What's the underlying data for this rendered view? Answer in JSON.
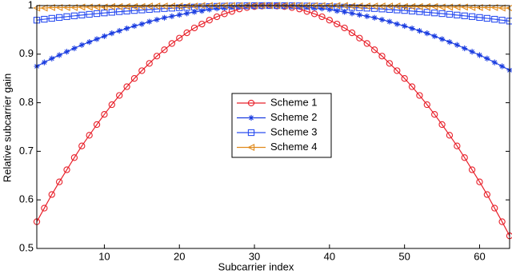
{
  "chart_data": {
    "type": "line",
    "x_label": "Subcarrier index",
    "y_label": "Relative subcarrier gain",
    "x": [
      1,
      2,
      3,
      4,
      5,
      6,
      7,
      8,
      9,
      10,
      11,
      12,
      13,
      14,
      15,
      16,
      17,
      18,
      19,
      20,
      21,
      22,
      23,
      24,
      25,
      26,
      27,
      28,
      29,
      30,
      31,
      32,
      33,
      34,
      35,
      36,
      37,
      38,
      39,
      40,
      41,
      42,
      43,
      44,
      45,
      46,
      47,
      48,
      49,
      50,
      51,
      52,
      53,
      54,
      55,
      56,
      57,
      58,
      59,
      60,
      61,
      62,
      63,
      64
    ],
    "xlim": [
      1,
      64
    ],
    "xticks": [
      10,
      20,
      30,
      40,
      50,
      60
    ],
    "ylim": [
      0.5,
      1
    ],
    "yticks": [
      0.5,
      0.6,
      0.7,
      0.8,
      0.9,
      1
    ],
    "legend_position": "center",
    "series": [
      {
        "name": "Scheme 1",
        "color": "#e8202a",
        "marker": "circle",
        "values": [
          0.555,
          0.583,
          0.611,
          0.637,
          0.662,
          0.687,
          0.711,
          0.733,
          0.755,
          0.776,
          0.796,
          0.815,
          0.833,
          0.85,
          0.866,
          0.881,
          0.896,
          0.909,
          0.922,
          0.933,
          0.944,
          0.954,
          0.962,
          0.97,
          0.977,
          0.983,
          0.988,
          0.993,
          0.996,
          0.998,
          0.999,
          1,
          0.999,
          0.998,
          0.996,
          0.993,
          0.988,
          0.983,
          0.977,
          0.97,
          0.962,
          0.954,
          0.944,
          0.933,
          0.922,
          0.909,
          0.896,
          0.881,
          0.866,
          0.85,
          0.833,
          0.815,
          0.796,
          0.776,
          0.755,
          0.733,
          0.711,
          0.687,
          0.662,
          0.637,
          0.611,
          0.583,
          0.555,
          0.526
        ]
      },
      {
        "name": "Scheme 2",
        "color": "#1a3ce0",
        "marker": "star",
        "values": [
          0.875,
          0.883,
          0.891,
          0.898,
          0.905,
          0.912,
          0.919,
          0.925,
          0.931,
          0.937,
          0.943,
          0.948,
          0.953,
          0.958,
          0.962,
          0.967,
          0.971,
          0.975,
          0.978,
          0.981,
          0.984,
          0.987,
          0.989,
          0.992,
          0.994,
          0.995,
          0.997,
          0.998,
          0.999,
          0.999,
          1,
          1,
          1,
          0.999,
          0.999,
          0.998,
          0.997,
          0.995,
          0.994,
          0.992,
          0.989,
          0.987,
          0.984,
          0.981,
          0.978,
          0.975,
          0.971,
          0.967,
          0.962,
          0.958,
          0.953,
          0.948,
          0.943,
          0.937,
          0.931,
          0.925,
          0.919,
          0.912,
          0.905,
          0.898,
          0.891,
          0.883,
          0.875,
          0.867
        ]
      },
      {
        "name": "Scheme 3",
        "color": "#2a4df0",
        "marker": "square",
        "values": [
          0.97,
          0.9719,
          0.9738,
          0.9755,
          0.9773,
          0.9789,
          0.9805,
          0.982,
          0.9835,
          0.9849,
          0.9862,
          0.9875,
          0.9887,
          0.9899,
          0.991,
          0.992,
          0.993,
          0.9939,
          0.9947,
          0.9955,
          0.9962,
          0.9969,
          0.9975,
          0.998,
          0.9985,
          0.9989,
          0.9992,
          0.9995,
          0.9997,
          0.9999,
          1,
          1,
          1,
          0.9999,
          0.9997,
          0.9995,
          0.9992,
          0.9989,
          0.9985,
          0.998,
          0.9975,
          0.9969,
          0.9962,
          0.9955,
          0.9947,
          0.9939,
          0.993,
          0.992,
          0.991,
          0.9899,
          0.9887,
          0.9875,
          0.9862,
          0.9849,
          0.9835,
          0.982,
          0.9805,
          0.9789,
          0.9773,
          0.9755,
          0.9738,
          0.9719,
          0.97,
          0.9681
        ]
      },
      {
        "name": "Scheme 4",
        "color": "#e08a1c",
        "marker": "triangle-left",
        "values": [
          0.995,
          0.995,
          0.996,
          0.996,
          0.996,
          0.996,
          0.997,
          0.997,
          0.997,
          0.997,
          0.998,
          0.998,
          0.998,
          0.998,
          0.998,
          0.999,
          0.999,
          0.999,
          0.999,
          0.999,
          0.999,
          0.999,
          1,
          1,
          1,
          1,
          1,
          1,
          1,
          1,
          1,
          1,
          1,
          1,
          1,
          1,
          1,
          1,
          1,
          1,
          1,
          1,
          0.999,
          0.999,
          0.999,
          0.999,
          0.999,
          0.999,
          0.999,
          0.998,
          0.998,
          0.998,
          0.998,
          0.998,
          0.997,
          0.997,
          0.997,
          0.997,
          0.996,
          0.996,
          0.996,
          0.996,
          0.995,
          0.995
        ]
      }
    ]
  }
}
